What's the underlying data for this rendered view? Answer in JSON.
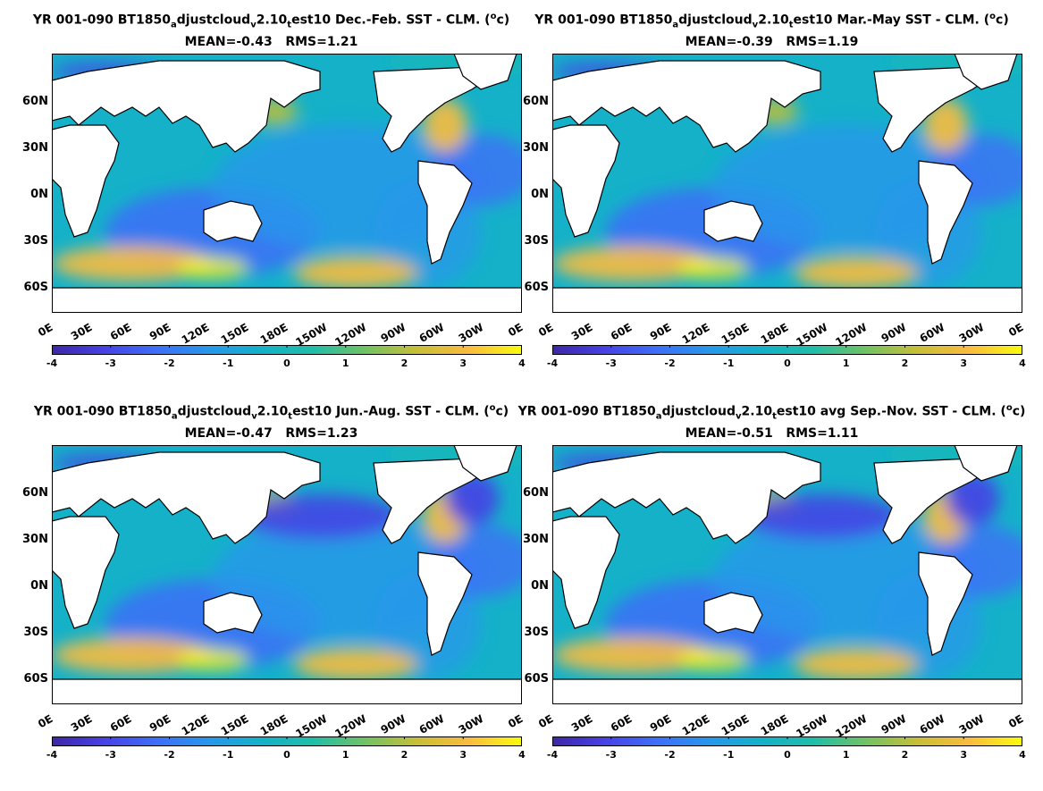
{
  "colors": {
    "colormap": [
      "#3e26a8",
      "#4741e6",
      "#3d6ff8",
      "#2797eb",
      "#14b1c9",
      "#1fbea9",
      "#71c264",
      "#c7bf36",
      "#fbbc3e",
      "#f9fb0e"
    ],
    "land": "#ffffff",
    "coast": "#000000"
  },
  "panels": [
    {
      "title_pre": "YR 001-090 BT1850",
      "sub1": "a",
      "mid1": "djustcloud",
      "sub2": "v",
      "mid2": "2.10",
      "sub3": "t",
      "mid3": "est10  Dec.-Feb. SST - CLM. (",
      "sup": "o",
      "title_post": "c)",
      "stats": "MEAN=-0.43   RMS=1.21"
    },
    {
      "title_pre": "YR 001-090 BT1850",
      "sub1": "a",
      "mid1": "djustcloud",
      "sub2": "v",
      "mid2": "2.10",
      "sub3": "t",
      "mid3": "est10 Mar.-May SST - CLM. (",
      "sup": "o",
      "title_post": "c)",
      "stats": "MEAN=-0.39   RMS=1.19"
    },
    {
      "title_pre": "YR 001-090 BT1850",
      "sub1": "a",
      "mid1": "djustcloud",
      "sub2": "v",
      "mid2": "2.10",
      "sub3": "t",
      "mid3": "est10 Jun.-Aug. SST - CLM. (",
      "sup": "o",
      "title_post": "c)",
      "stats": "MEAN=-0.47   RMS=1.23"
    },
    {
      "title_pre": "YR 001-090 BT1850",
      "sub1": "a",
      "mid1": "djustcloud",
      "sub2": "v",
      "mid2": "2.10",
      "sub3": "t",
      "mid3": "est10 avg Sep.-Nov. SST - CLM. (",
      "sup": "o",
      "title_post": "c)",
      "stats": "MEAN=-0.51   RMS=1.11"
    }
  ],
  "axes": {
    "lat_labels": [
      "60N",
      "30N",
      "0N",
      "30S",
      "60S"
    ],
    "lon_labels": [
      "0E",
      "30E",
      "60E",
      "90E",
      "120E",
      "150E",
      "180E",
      "150W",
      "120W",
      "90W",
      "60W",
      "30W",
      "0E"
    ]
  },
  "colorbar": {
    "ticks": [
      "-4",
      "-3",
      "-2",
      "-1",
      "0",
      "1",
      "2",
      "3",
      "4"
    ]
  }
}
